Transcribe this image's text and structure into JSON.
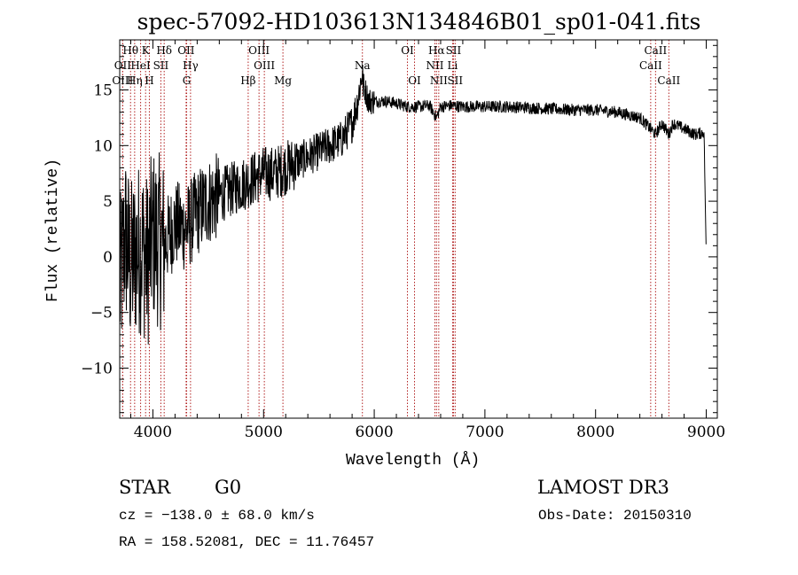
{
  "chart_data": {
    "type": "line",
    "title": "spec-57092-HD103613N134846B01_sp01-041.fits",
    "xlabel": "Wavelength (Å)",
    "ylabel": "Flux (relative)",
    "xlim": [
      3700,
      9100
    ],
    "ylim": [
      -14.5,
      19.5
    ],
    "xticks": [
      4000,
      5000,
      6000,
      7000,
      8000,
      9000
    ],
    "xtick_labels": [
      "4000",
      "5000",
      "6000",
      "7000",
      "8000",
      "9000"
    ],
    "yticks": [
      -10,
      -5,
      0,
      5,
      10,
      15
    ],
    "ytick_labels": [
      "−10",
      "−5",
      "0",
      "5",
      "10",
      "15"
    ],
    "grid": false,
    "series": [
      {
        "name": "spectrum",
        "color": "#000000",
        "x": [
          3700,
          3750,
          3800,
          3850,
          3900,
          3950,
          4000,
          4100,
          4200,
          4300,
          4400,
          4500,
          4600,
          4700,
          4800,
          4900,
          5000,
          5100,
          5200,
          5300,
          5400,
          5500,
          5600,
          5700,
          5800,
          5850,
          5890,
          5900,
          5950,
          6000,
          6100,
          6200,
          6300,
          6400,
          6500,
          6563,
          6600,
          6700,
          6800,
          7000,
          7200,
          7400,
          7600,
          7800,
          8000,
          8200,
          8400,
          8498,
          8542,
          8600,
          8662,
          8700,
          8800,
          8900,
          8980,
          9000
        ],
        "values": [
          -3.0,
          2.0,
          -1.0,
          0.5,
          1.0,
          -0.5,
          2.0,
          1.0,
          3.0,
          2.5,
          4.0,
          5.0,
          5.5,
          6.0,
          6.5,
          7.0,
          7.5,
          7.5,
          8.0,
          8.5,
          9.0,
          9.5,
          10.0,
          10.5,
          12.0,
          14.0,
          16.5,
          15.5,
          14.0,
          14.0,
          14.0,
          13.8,
          13.5,
          13.5,
          13.6,
          12.5,
          13.5,
          13.6,
          13.5,
          13.5,
          13.5,
          13.4,
          13.3,
          13.2,
          13.2,
          13.0,
          12.5,
          11.5,
          11.0,
          12.0,
          11.0,
          12.0,
          11.5,
          11.0,
          11.2,
          0.0
        ]
      }
    ],
    "line_markers": [
      {
        "name": "Hθ",
        "wavelength": 3798,
        "row": 1
      },
      {
        "name": "K",
        "wavelength": 3934,
        "row": 1
      },
      {
        "name": "Hδ",
        "wavelength": 4102,
        "row": 1
      },
      {
        "name": "OII",
        "wavelength": 4300,
        "row": 1
      },
      {
        "name": "OIII",
        "wavelength": 4959,
        "row": 1
      },
      {
        "name": "OI",
        "wavelength": 6300,
        "row": 1
      },
      {
        "name": "Hα",
        "wavelength": 6563,
        "row": 1
      },
      {
        "name": "SII",
        "wavelength": 6716,
        "row": 1
      },
      {
        "name": "CaII",
        "wavelength": 8542,
        "row": 1
      },
      {
        "name": "OII",
        "wavelength": 3727,
        "row": 2
      },
      {
        "name": "HeI",
        "wavelength": 3889,
        "row": 2
      },
      {
        "name": "SII",
        "wavelength": 4072,
        "row": 2
      },
      {
        "name": "Hγ",
        "wavelength": 4340,
        "row": 2
      },
      {
        "name": "OIII",
        "wavelength": 5007,
        "row": 2
      },
      {
        "name": "Na",
        "wavelength": 5893,
        "row": 2
      },
      {
        "name": "NII",
        "wavelength": 6548,
        "row": 2
      },
      {
        "name": "Li",
        "wavelength": 6708,
        "row": 2
      },
      {
        "name": "CaII",
        "wavelength": 8498,
        "row": 2
      },
      {
        "name": "OIII",
        "wavelength": 3727,
        "row": 3
      },
      {
        "name": "Hη",
        "wavelength": 3835,
        "row": 3
      },
      {
        "name": "H",
        "wavelength": 3968,
        "row": 3
      },
      {
        "name": "G",
        "wavelength": 4305,
        "row": 3
      },
      {
        "name": "Hβ",
        "wavelength": 4861,
        "row": 3
      },
      {
        "name": "Mg",
        "wavelength": 5175,
        "row": 3
      },
      {
        "name": "OI",
        "wavelength": 6364,
        "row": 3
      },
      {
        "name": "NII",
        "wavelength": 6583,
        "row": 3
      },
      {
        "name": "SII",
        "wavelength": 6731,
        "row": 3
      },
      {
        "name": "CaII",
        "wavelength": 8662,
        "row": 3
      }
    ],
    "annotations": {
      "object_class": "STAR",
      "subclass": "G0",
      "survey": "LAMOST DR3",
      "cz": "cz = −138.0 ± 68.0 km/s",
      "obs_date": "Obs-Date: 20150310",
      "coords": "RA = 158.52081, DEC =  11.76457"
    }
  }
}
